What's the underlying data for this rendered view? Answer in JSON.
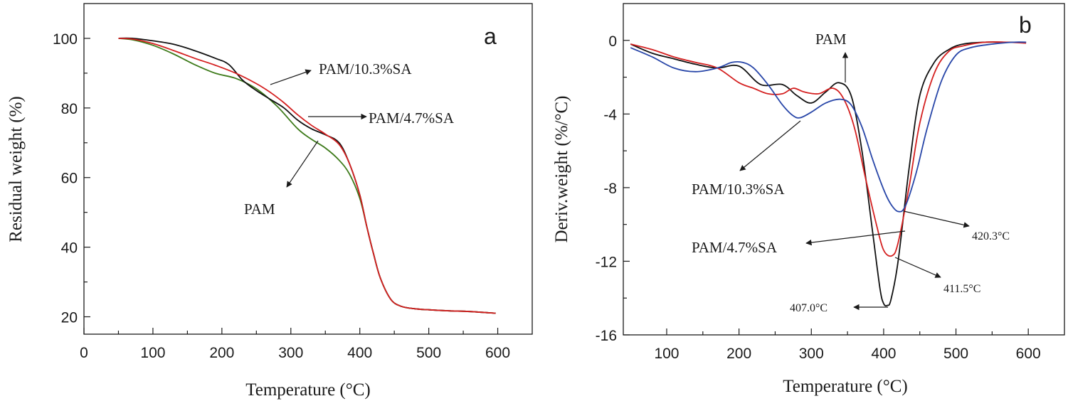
{
  "chart_data": [
    {
      "type": "line",
      "panel_label": "a",
      "xlabel": "Temperature (°C)",
      "ylabel": "Residual weight (%)",
      "xlim": [
        0,
        650
      ],
      "ylim": [
        15,
        110
      ],
      "xticks": [
        0,
        100,
        200,
        300,
        400,
        500,
        600
      ],
      "yticks": [
        20,
        40,
        60,
        80,
        100
      ],
      "grid": false,
      "series": [
        {
          "name": "PAM",
          "color": "#3d7a1a",
          "x": [
            50,
            70,
            100,
            130,
            160,
            190,
            220,
            250,
            280,
            310,
            330,
            350,
            370,
            385,
            400,
            410,
            420,
            430,
            445,
            460,
            480,
            500,
            530,
            560,
            597
          ],
          "y": [
            100,
            99.6,
            98,
            95.5,
            92.5,
            90,
            88.5,
            85.5,
            80.5,
            74,
            71,
            68.5,
            65,
            61,
            54,
            46,
            38,
            31,
            25,
            23,
            22.3,
            22,
            21.7,
            21.5,
            21
          ]
        },
        {
          "name": "PAM/4.7%SA",
          "color": "#111111",
          "x": [
            50,
            70,
            100,
            130,
            160,
            190,
            210,
            230,
            250,
            270,
            290,
            310,
            330,
            350,
            370,
            385,
            400,
            410,
            420,
            430,
            445,
            460,
            480,
            500,
            530,
            560,
            597
          ],
          "y": [
            100,
            100,
            99.3,
            98.3,
            96.5,
            94.3,
            92.5,
            88,
            85,
            82.5,
            80,
            76.5,
            74,
            72.3,
            70,
            64,
            55,
            46,
            38,
            31,
            25,
            23,
            22.3,
            22,
            21.7,
            21.5,
            21
          ]
        },
        {
          "name": "PAM/10.3%SA",
          "color": "#d42020",
          "x": [
            50,
            70,
            100,
            130,
            160,
            190,
            220,
            250,
            270,
            290,
            310,
            330,
            350,
            370,
            385,
            400,
            410,
            420,
            430,
            445,
            460,
            480,
            500,
            530,
            560,
            597
          ],
          "y": [
            100,
            99.8,
            98.5,
            96.5,
            94.3,
            92.3,
            90,
            87,
            84.5,
            81.5,
            78,
            75,
            72.5,
            69.5,
            64,
            55,
            46,
            38,
            31,
            25,
            23,
            22.3,
            22,
            21.7,
            21.5,
            21
          ]
        }
      ],
      "annotations": [
        {
          "text": "PAM/10.3%SA"
        },
        {
          "text": "PAM/4.7%SA"
        },
        {
          "text": "PAM"
        }
      ]
    },
    {
      "type": "line",
      "panel_label": "b",
      "xlabel": "Temperature (°C)",
      "ylabel": "Deriv.weight (%/°C)",
      "xlim": [
        40,
        650
      ],
      "ylim": [
        -16,
        2
      ],
      "xticks": [
        100,
        200,
        300,
        400,
        500,
        600
      ],
      "yticks": [
        0,
        -4,
        -8,
        -12,
        -16
      ],
      "grid": false,
      "series": [
        {
          "name": "PAM",
          "color": "#111111",
          "x": [
            50,
            80,
            110,
            140,
            170,
            200,
            230,
            260,
            280,
            300,
            320,
            338,
            355,
            370,
            385,
            395,
            400,
            405,
            410,
            420,
            435,
            450,
            470,
            490,
            510,
            540,
            570,
            597
          ],
          "y": [
            -0.2,
            -0.7,
            -1,
            -1.3,
            -1.5,
            -1.4,
            -2.4,
            -2.4,
            -3,
            -3.4,
            -2.8,
            -2.3,
            -3,
            -6,
            -10.5,
            -13.5,
            -14.3,
            -14.4,
            -14.1,
            -12,
            -7,
            -3,
            -1.2,
            -0.5,
            -0.2,
            -0.1,
            -0.1,
            -0.1
          ]
        },
        {
          "name": "PAM/4.7%SA",
          "color": "#d42020",
          "x": [
            50,
            80,
            110,
            140,
            170,
            200,
            220,
            240,
            260,
            275,
            290,
            310,
            330,
            345,
            360,
            375,
            390,
            400,
            411.5,
            420,
            435,
            450,
            470,
            490,
            510,
            540,
            570,
            597
          ],
          "y": [
            -0.2,
            -0.5,
            -0.9,
            -1.2,
            -1.5,
            -2.3,
            -2.6,
            -2.9,
            -2.9,
            -2.6,
            -2.8,
            -2.9,
            -2.6,
            -3.2,
            -4.8,
            -7.5,
            -10,
            -11.4,
            -11.7,
            -11,
            -8,
            -4.5,
            -1.8,
            -0.6,
            -0.3,
            -0.1,
            -0.1,
            -0.15
          ]
        },
        {
          "name": "PAM/10.3%SA",
          "color": "#2846a8",
          "x": [
            50,
            80,
            110,
            140,
            170,
            190,
            205,
            220,
            240,
            260,
            275,
            285,
            300,
            320,
            340,
            355,
            370,
            385,
            400,
            410,
            420.3,
            430,
            445,
            460,
            480,
            500,
            520,
            550,
            580,
            597
          ],
          "y": [
            -0.4,
            -0.9,
            -1.5,
            -1.7,
            -1.5,
            -1.2,
            -1.2,
            -1.5,
            -2.4,
            -3.5,
            -4.1,
            -4.2,
            -3.9,
            -3.4,
            -3.2,
            -3.5,
            -4.7,
            -6.5,
            -8.1,
            -8.9,
            -9.3,
            -9,
            -7.2,
            -4.8,
            -2.2,
            -0.8,
            -0.4,
            -0.2,
            -0.1,
            -0.1
          ]
        }
      ],
      "annotations": [
        {
          "text": "PAM"
        },
        {
          "text": "PAM/10.3%SA"
        },
        {
          "text": "PAM/4.7%SA"
        },
        {
          "text": "420.3°C"
        },
        {
          "text": "411.5°C"
        },
        {
          "text": "407.0°C"
        }
      ]
    }
  ]
}
